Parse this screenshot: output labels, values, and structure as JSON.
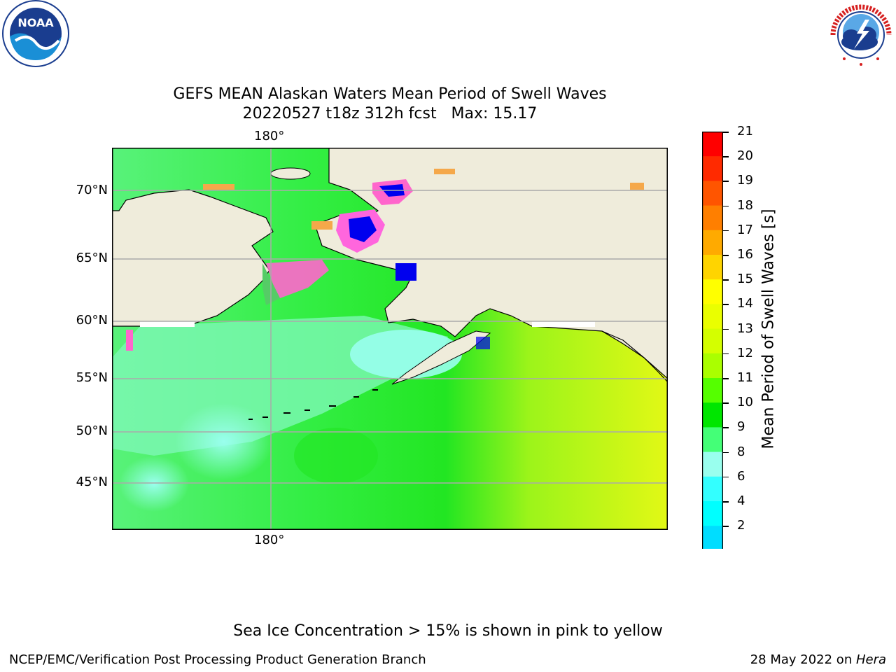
{
  "logos": {
    "noaa": {
      "text": "NOAA",
      "ring_text": "NATIONAL OCEANIC AND ATMOSPHERIC ADMINISTRATION · U.S. DEPARTMENT OF COMMERCE"
    },
    "nws": {
      "ring_text": "NATIONAL WEATHER SERVICE"
    }
  },
  "title": {
    "line1": "GEFS MEAN Alaskan Waters Mean Period of Swell Waves",
    "line2": "20220527 t18z 312h fcst   Max: 15.17"
  },
  "map": {
    "lon_labels": {
      "top": "180°",
      "bottom": "180°"
    },
    "lat_labels": [
      "70°N",
      "65°N",
      "60°N",
      "55°N",
      "50°N",
      "45°N"
    ],
    "land_color": "#efecdb"
  },
  "colorbar": {
    "label": "Mean Period of Swell Waves [s]",
    "ticks": [
      "21",
      "20",
      "19",
      "18",
      "17",
      "16",
      "15",
      "14",
      "13",
      "12",
      "11",
      "10",
      "9",
      "8",
      "6",
      "4",
      "2"
    ],
    "colors": [
      "#ff0000",
      "#ff2a00",
      "#ff5500",
      "#ff7f00",
      "#ffaa00",
      "#ffd400",
      "#ffff00",
      "#eaff00",
      "#d4ff00",
      "#aaff00",
      "#55ff00",
      "#00e600",
      "#44ff77",
      "#99ffee",
      "#33ffff",
      "#00ffff",
      "#00ddff",
      "#0077ff"
    ],
    "extend_color": "#0000ee"
  },
  "footer": {
    "note": "Sea Ice Concentration > 15% is shown in pink to yellow",
    "left": "NCEP/EMC/Verification Post Processing Product Generation Branch",
    "right_prefix": "28 May 2022 on ",
    "right_italic": "Hera"
  }
}
